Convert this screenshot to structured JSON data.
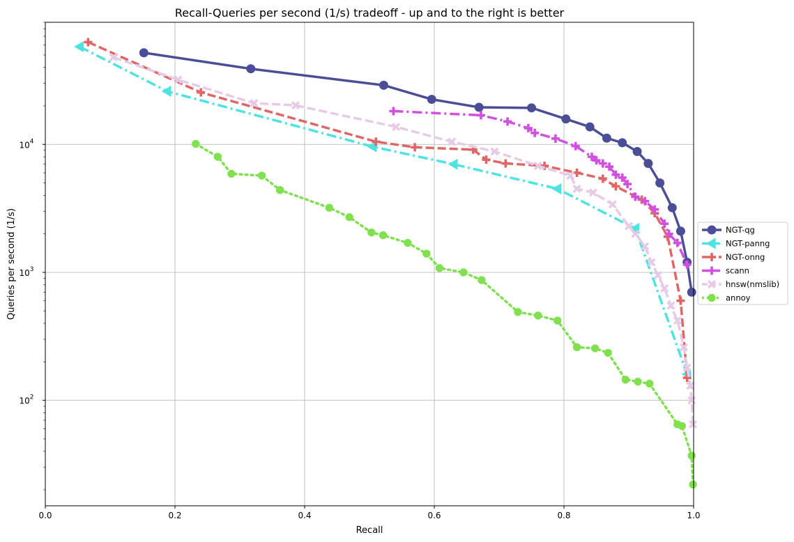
{
  "chart_data": {
    "type": "line",
    "title": "Recall-Queries per second (1/s) tradeoff - up and to the right is better",
    "xlabel": "Recall",
    "ylabel": "Queries per second (1/s)",
    "xlim": [
      0.0,
      1.0
    ],
    "ylim": [
      15,
      90000
    ],
    "yscale": "log",
    "grid": true,
    "legend_position": "right",
    "x_ticks": [
      "0.0",
      "0.2",
      "0.4",
      "0.6",
      "0.8",
      "1.0"
    ],
    "y_ticks": [
      {
        "base": "10",
        "exp": "2"
      },
      {
        "base": "10",
        "exp": "3"
      },
      {
        "base": "10",
        "exp": "4"
      }
    ],
    "series": [
      {
        "name": "NGT-qg",
        "color": "#4b4e96",
        "style": "solid",
        "marker": "circle",
        "x": [
          0.152,
          0.317,
          0.522,
          0.596,
          0.669,
          0.75,
          0.803,
          0.84,
          0.866,
          0.89,
          0.913,
          0.93,
          0.948,
          0.967,
          0.98,
          0.99,
          0.997
        ],
        "y": [
          52000,
          39000,
          29000,
          22500,
          19500,
          19300,
          15800,
          13700,
          11200,
          10300,
          8800,
          7100,
          5000,
          3200,
          2100,
          1200,
          700
        ]
      },
      {
        "name": "NGT-panng",
        "color": "#4de3e0",
        "style": "dashdot",
        "marker": "triangle-left",
        "x": [
          0.053,
          0.188,
          0.505,
          0.63,
          0.79,
          0.91,
          0.99
        ],
        "y": [
          58000,
          26000,
          9600,
          7000,
          4500,
          2200,
          160
        ]
      },
      {
        "name": "NGT-onng",
        "color": "#e06666",
        "style": "dashed",
        "marker": "plus",
        "x": [
          0.066,
          0.24,
          0.51,
          0.57,
          0.66,
          0.68,
          0.71,
          0.77,
          0.82,
          0.86,
          0.88,
          0.92,
          0.94,
          0.96,
          0.98,
          0.99
        ],
        "y": [
          63000,
          25500,
          10500,
          9500,
          9100,
          7600,
          7100,
          6800,
          6000,
          5400,
          4700,
          3700,
          2900,
          1900,
          600,
          150
        ]
      },
      {
        "name": "scann",
        "color": "#d050e0",
        "style": "dashdot",
        "marker": "plus",
        "x": [
          0.537,
          0.672,
          0.713,
          0.745,
          0.755,
          0.787,
          0.818,
          0.843,
          0.85,
          0.86,
          0.87,
          0.88,
          0.89,
          0.898,
          0.91,
          0.925,
          0.94,
          0.955,
          0.962,
          0.975,
          0.99
        ],
        "y": [
          18200,
          16900,
          15100,
          13400,
          12300,
          11100,
          9700,
          8000,
          7500,
          7100,
          6700,
          5800,
          5500,
          4900,
          3900,
          3600,
          3100,
          2400,
          2000,
          1700,
          1150
        ]
      },
      {
        "name": "hnsw(nmslib)",
        "color": "#e6cbe6",
        "style": "dashed",
        "marker": "x",
        "x": [
          0.105,
          0.205,
          0.322,
          0.386,
          0.541,
          0.627,
          0.693,
          0.76,
          0.81,
          0.82,
          0.845,
          0.875,
          0.9,
          0.91,
          0.925,
          0.935,
          0.945,
          0.955,
          0.965,
          0.975,
          0.985,
          0.99,
          0.995,
          0.997,
          0.999
        ],
        "y": [
          48000,
          32000,
          21000,
          20200,
          13700,
          10500,
          8800,
          6800,
          5700,
          4500,
          4200,
          3400,
          2300,
          2000,
          1600,
          1200,
          950,
          750,
          550,
          420,
          260,
          180,
          130,
          100,
          65
        ]
      },
      {
        "name": "annoy",
        "color": "#80e050",
        "style": "dotted",
        "marker": "octagon",
        "x": [
          0.232,
          0.266,
          0.287,
          0.334,
          0.362,
          0.438,
          0.469,
          0.503,
          0.521,
          0.559,
          0.588,
          0.608,
          0.645,
          0.673,
          0.729,
          0.76,
          0.79,
          0.82,
          0.848,
          0.868,
          0.895,
          0.914,
          0.932,
          0.975,
          0.982,
          0.997,
          0.999
        ],
        "y": [
          10100,
          8000,
          5900,
          5700,
          4400,
          3200,
          2700,
          2050,
          1950,
          1700,
          1400,
          1080,
          1000,
          870,
          490,
          460,
          420,
          260,
          255,
          235,
          145,
          140,
          135,
          65,
          63,
          37,
          22
        ]
      }
    ]
  }
}
